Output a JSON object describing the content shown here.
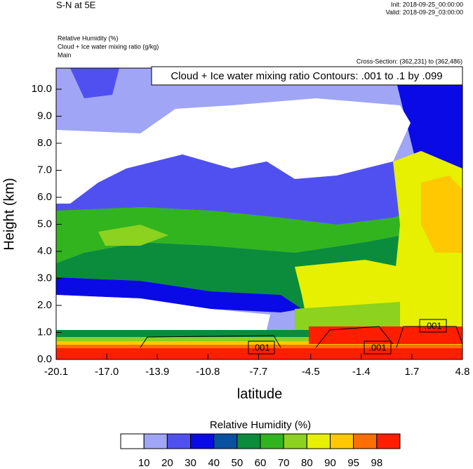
{
  "header": {
    "title": "S-N at 5E",
    "init": "Init: 2018-09-25_00:00:00",
    "valid": "Valid: 2018-09-29_03:00:00"
  },
  "fields": [
    "Relative Humidity   (%)",
    "Cloud + Ice water mixing ratio   (g/kg)",
    "Main"
  ],
  "cross_section": "Cross-Section: (362,231) to (362,486)",
  "chart_data": {
    "type": "contour",
    "title": "Cloud + Ice water mixing ratio Contours: .001 to .1 by .099",
    "x_label": "latitude",
    "y_label": "Height (km)",
    "xlim": [
      -20.1,
      4.8
    ],
    "xticks": [
      -20.1,
      {
        "value": -17,
        "label": "-17.0"
      },
      -13.9,
      -10.8,
      -7.7,
      -4.5,
      -1.4,
      1.7,
      4.8
    ],
    "ylim": [
      0,
      10.78
    ],
    "yticks": [
      {
        "value": 0,
        "label": "0.0"
      },
      {
        "value": 1,
        "label": "1.0"
      },
      {
        "value": 2,
        "label": "2.0"
      },
      {
        "value": 3,
        "label": "3.0"
      },
      {
        "value": 4,
        "label": "4.0"
      },
      {
        "value": 5,
        "label": "5.0"
      },
      {
        "value": 6,
        "label": "6.0"
      },
      {
        "value": 7,
        "label": "7.0"
      },
      {
        "value": 8,
        "label": "8.0"
      },
      {
        "value": 9,
        "label": "9.0"
      },
      {
        "value": 10,
        "label": "10.0"
      }
    ],
    "contour_labels": [
      ".001",
      ".001",
      ".001"
    ],
    "colorbar": {
      "title": "Relative Humidity  (%)",
      "levels": [
        10,
        20,
        30,
        40,
        50,
        60,
        70,
        80,
        90,
        95,
        98
      ],
      "colors": [
        "#ffffff",
        "#a0a5f5",
        "#5050f0",
        "#0a0ae6",
        "#0a50a0",
        "#0a8c3c",
        "#32b41e",
        "#8cd21e",
        "#e6f000",
        "#ffc800",
        "#ff6e00",
        "#ff1e00"
      ]
    }
  }
}
